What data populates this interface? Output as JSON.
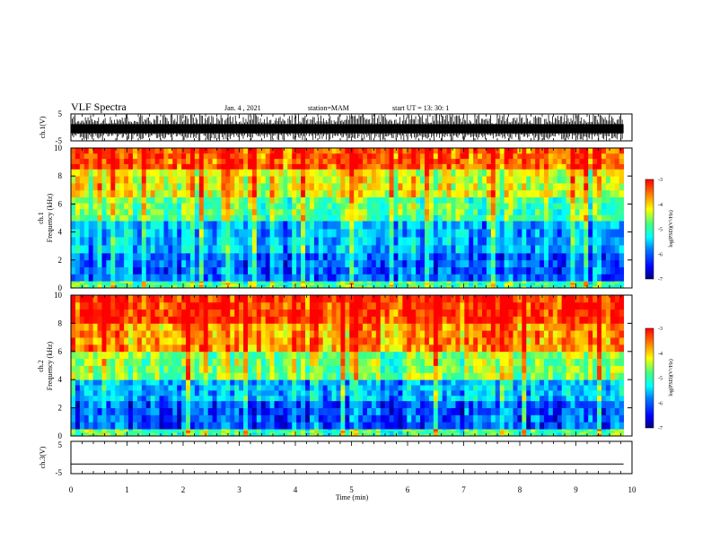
{
  "header": {
    "title": "VLF Spectra",
    "date": "Jan. 4 , 2021",
    "station": "station=MAM",
    "start": "start UT =  13: 30: 1"
  },
  "colors": {
    "colormap": [
      "#000080",
      "#0000ff",
      "#0080ff",
      "#00ffff",
      "#40ff80",
      "#ffff00",
      "#ff8000",
      "#ff0000"
    ],
    "trace": "#000000",
    "frame": "#000000"
  },
  "chart_data": [
    {
      "type": "line",
      "panel": "ch1-waveform",
      "ylabel": "ch.1(V)",
      "ylim": [
        -5,
        5
      ],
      "yticks": [
        "5",
        "-5"
      ],
      "xlim": [
        0,
        10
      ],
      "description_values": "dense broadband signal spanning approximately -5 to 5 V"
    },
    {
      "type": "heatmap",
      "panel": "ch1-spectrogram",
      "ylabel": "ch.1\nFrequency (kHz)",
      "ylim": [
        0,
        10
      ],
      "yticks": [
        "0",
        "2",
        "4",
        "6",
        "8",
        "10"
      ],
      "xlim": [
        0,
        9.85
      ],
      "colorbar": {
        "label": "log(PSD)(V²/Hz)",
        "range": [
          -7,
          -3
        ],
        "ticks": [
          "-3",
          "-4",
          "-5",
          "-6",
          "-7"
        ]
      },
      "bands_khz": [
        {
          "from": 0,
          "to": 0.5,
          "level": -4.8
        },
        {
          "from": 0.5,
          "to": 2.5,
          "level": -6.0
        },
        {
          "from": 2.5,
          "to": 4.8,
          "level": -5.6
        },
        {
          "from": 4.8,
          "to": 6.5,
          "level": -4.8
        },
        {
          "from": 6.5,
          "to": 8.5,
          "level": -4.2
        },
        {
          "from": 8.5,
          "to": 10,
          "level": -3.4
        }
      ]
    },
    {
      "type": "heatmap",
      "panel": "ch2-spectrogram",
      "ylabel": "ch.2\nFrequency (kHz)",
      "ylim": [
        0,
        10
      ],
      "yticks": [
        "0",
        "2",
        "4",
        "6",
        "8",
        "10"
      ],
      "xlim": [
        0,
        9.85
      ],
      "colorbar": {
        "label": "log(PSD)(V²/Hz)",
        "range": [
          -7,
          -3
        ],
        "ticks": [
          "-3",
          "-4",
          "-5",
          "-6",
          "-7"
        ]
      },
      "bands_khz": [
        {
          "from": 0,
          "to": 0.5,
          "level": -4.8
        },
        {
          "from": 0.5,
          "to": 2.5,
          "level": -6.1
        },
        {
          "from": 2.5,
          "to": 4.0,
          "level": -5.6
        },
        {
          "from": 4.0,
          "to": 6.0,
          "level": -4.6
        },
        {
          "from": 6.0,
          "to": 8.0,
          "level": -3.7
        },
        {
          "from": 8.0,
          "to": 10,
          "level": -3.2
        }
      ]
    },
    {
      "type": "line",
      "panel": "ch3-waveform",
      "ylabel": "ch.3(V)",
      "ylim": [
        -5,
        5
      ],
      "yticks": [
        "5",
        "-5"
      ],
      "xlim": [
        0,
        9.85
      ],
      "xlabel": "Time (min)",
      "xticks": [
        "0",
        "1",
        "2",
        "3",
        "4",
        "5",
        "6",
        "7",
        "8",
        "9",
        "10"
      ],
      "values": [
        -2,
        -2
      ]
    }
  ]
}
